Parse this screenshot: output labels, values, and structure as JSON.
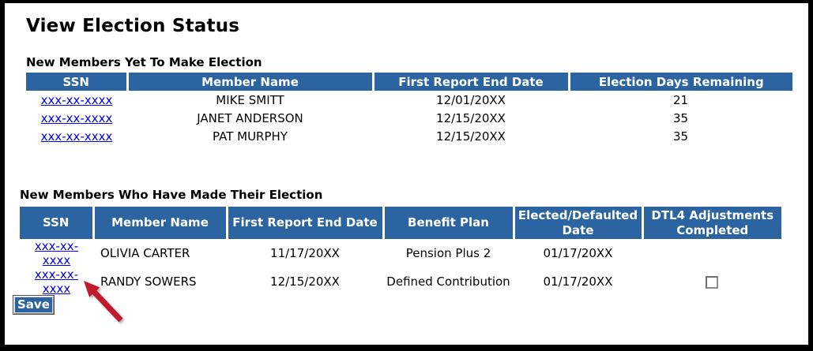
{
  "page": {
    "title": "View Election Status"
  },
  "colors": {
    "header_bg": "#2B64A0",
    "link": "#0000EE",
    "arrow": "#C2192D",
    "save_bg": "#2B64A0"
  },
  "pending_table": {
    "heading": "New Members Yet To Make Election",
    "columns": [
      "SSN",
      "Member Name",
      "First Report End Date",
      "Election Days Remaining"
    ],
    "rows": [
      {
        "ssn": "xxx-xx-xxxx",
        "member_name": "MIKE SMITT",
        "first_report_end_date": "12/01/20XX",
        "election_days_remaining": "21"
      },
      {
        "ssn": "xxx-xx-xxxx",
        "member_name": "JANET ANDERSON",
        "first_report_end_date": "12/15/20XX",
        "election_days_remaining": "35"
      },
      {
        "ssn": "xxx-xx-xxxx",
        "member_name": "PAT MURPHY",
        "first_report_end_date": "12/15/20XX",
        "election_days_remaining": "35"
      }
    ]
  },
  "elected_table": {
    "heading": "New Members Who Have Made Their Election",
    "columns": [
      "SSN",
      "Member Name",
      "First Report End Date",
      "Benefit Plan",
      "Elected/Defaulted Date",
      "DTL4 Adjustments Completed"
    ],
    "rows": [
      {
        "ssn": "xxx-xx-xxxx",
        "member_name": "OLIVIA CARTER",
        "first_report_end_date": "11/17/20XX",
        "benefit_plan": "Pension Plus 2",
        "elected_defaulted_date": "01/17/20XX",
        "dtl4_checkbox": "none"
      },
      {
        "ssn": "xxx-xx-xxxx",
        "member_name": "RANDY SOWERS",
        "first_report_end_date": "12/15/20XX",
        "benefit_plan": "Defined Contribution",
        "elected_defaulted_date": "01/17/20XX",
        "dtl4_checkbox": "unchecked"
      }
    ]
  },
  "save_button": {
    "label": "Save"
  }
}
